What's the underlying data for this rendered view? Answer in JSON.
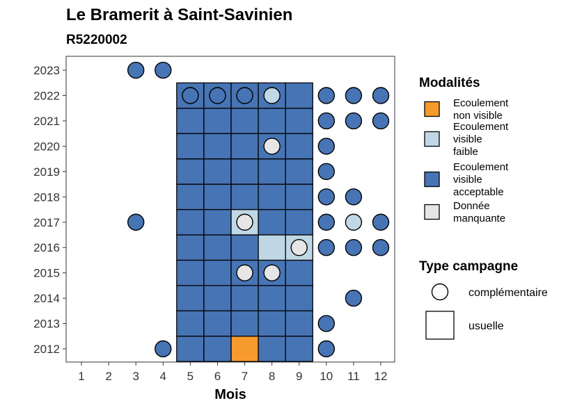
{
  "title": "Le Bramerit à Saint-Savinien",
  "subtitle": "R5220002",
  "chart_data": {
    "type": "heatmap",
    "xlabel": "Mois",
    "ylabel": "",
    "x_categories": [
      "1",
      "2",
      "3",
      "4",
      "5",
      "6",
      "7",
      "8",
      "9",
      "10",
      "11",
      "12"
    ],
    "y_categories": [
      "2012",
      "2013",
      "2014",
      "2015",
      "2016",
      "2017",
      "2018",
      "2019",
      "2020",
      "2021",
      "2022",
      "2023"
    ],
    "colors": {
      "ecoulement_non_visible": "#F79A2D",
      "ecoulement_visible_faible": "#C0D7E6",
      "ecoulement_visible_acceptable": "#4774B4",
      "donnee_manquante": "#E6E6E6"
    },
    "tiles_usuelle": [
      {
        "year": "2012",
        "months": [
          "5",
          "6",
          "7",
          "8",
          "9"
        ],
        "values": [
          "acceptable",
          "acceptable",
          "non_visible",
          "acceptable",
          "acceptable"
        ]
      },
      {
        "year": "2013",
        "months": [
          "5",
          "6",
          "7",
          "8",
          "9"
        ],
        "values": [
          "acceptable",
          "acceptable",
          "acceptable",
          "acceptable",
          "acceptable"
        ]
      },
      {
        "year": "2014",
        "months": [
          "5",
          "6",
          "7",
          "8",
          "9"
        ],
        "values": [
          "acceptable",
          "acceptable",
          "acceptable",
          "acceptable",
          "acceptable"
        ]
      },
      {
        "year": "2015",
        "months": [
          "5",
          "6",
          "7",
          "8",
          "9"
        ],
        "values": [
          "acceptable",
          "acceptable",
          "acceptable",
          "acceptable",
          "acceptable"
        ]
      },
      {
        "year": "2016",
        "months": [
          "5",
          "6",
          "7",
          "8",
          "9"
        ],
        "values": [
          "acceptable",
          "acceptable",
          "acceptable",
          "faible",
          "faible"
        ]
      },
      {
        "year": "2017",
        "months": [
          "5",
          "6",
          "7",
          "8",
          "9"
        ],
        "values": [
          "acceptable",
          "acceptable",
          "faible",
          "acceptable",
          "acceptable"
        ]
      },
      {
        "year": "2018",
        "months": [
          "5",
          "6",
          "7",
          "8",
          "9"
        ],
        "values": [
          "acceptable",
          "acceptable",
          "acceptable",
          "acceptable",
          "acceptable"
        ]
      },
      {
        "year": "2019",
        "months": [
          "5",
          "6",
          "7",
          "8",
          "9"
        ],
        "values": [
          "acceptable",
          "acceptable",
          "acceptable",
          "acceptable",
          "acceptable"
        ]
      },
      {
        "year": "2020",
        "months": [
          "5",
          "6",
          "7",
          "8",
          "9"
        ],
        "values": [
          "acceptable",
          "acceptable",
          "acceptable",
          "acceptable",
          "acceptable"
        ]
      },
      {
        "year": "2021",
        "months": [
          "5",
          "6",
          "7",
          "8",
          "9"
        ],
        "values": [
          "acceptable",
          "acceptable",
          "acceptable",
          "acceptable",
          "acceptable"
        ]
      },
      {
        "year": "2022",
        "months": [
          "5",
          "6",
          "7",
          "8",
          "9"
        ],
        "values": [
          "acceptable",
          "acceptable",
          "acceptable",
          "acceptable",
          "acceptable"
        ]
      }
    ],
    "points_complementaire": [
      {
        "year": "2023",
        "month": "3",
        "value": "acceptable"
      },
      {
        "year": "2023",
        "month": "4",
        "value": "acceptable"
      },
      {
        "year": "2022",
        "month": "5",
        "value": "acceptable"
      },
      {
        "year": "2022",
        "month": "6",
        "value": "acceptable"
      },
      {
        "year": "2022",
        "month": "7",
        "value": "acceptable"
      },
      {
        "year": "2022",
        "month": "8",
        "value": "faible"
      },
      {
        "year": "2022",
        "month": "10",
        "value": "acceptable"
      },
      {
        "year": "2022",
        "month": "11",
        "value": "acceptable"
      },
      {
        "year": "2022",
        "month": "12",
        "value": "acceptable"
      },
      {
        "year": "2021",
        "month": "10",
        "value": "acceptable"
      },
      {
        "year": "2021",
        "month": "11",
        "value": "acceptable"
      },
      {
        "year": "2021",
        "month": "12",
        "value": "acceptable"
      },
      {
        "year": "2020",
        "month": "8",
        "value": "manquante"
      },
      {
        "year": "2020",
        "month": "10",
        "value": "acceptable"
      },
      {
        "year": "2019",
        "month": "10",
        "value": "acceptable"
      },
      {
        "year": "2018",
        "month": "10",
        "value": "acceptable"
      },
      {
        "year": "2018",
        "month": "11",
        "value": "acceptable"
      },
      {
        "year": "2017",
        "month": "3",
        "value": "acceptable"
      },
      {
        "year": "2017",
        "month": "7",
        "value": "manquante"
      },
      {
        "year": "2017",
        "month": "10",
        "value": "acceptable"
      },
      {
        "year": "2017",
        "month": "11",
        "value": "faible"
      },
      {
        "year": "2017",
        "month": "12",
        "value": "acceptable"
      },
      {
        "year": "2016",
        "month": "9",
        "value": "manquante"
      },
      {
        "year": "2016",
        "month": "10",
        "value": "acceptable"
      },
      {
        "year": "2016",
        "month": "11",
        "value": "acceptable"
      },
      {
        "year": "2016",
        "month": "12",
        "value": "acceptable"
      },
      {
        "year": "2015",
        "month": "7",
        "value": "manquante"
      },
      {
        "year": "2015",
        "month": "8",
        "value": "manquante"
      },
      {
        "year": "2014",
        "month": "11",
        "value": "acceptable"
      },
      {
        "year": "2013",
        "month": "10",
        "value": "acceptable"
      },
      {
        "year": "2012",
        "month": "4",
        "value": "acceptable"
      },
      {
        "year": "2012",
        "month": "10",
        "value": "acceptable"
      }
    ],
    "grid": false,
    "legend_position": "right"
  },
  "legend": {
    "modalites_title": "Modalités",
    "modalites": [
      {
        "key": "non_visible",
        "color": "#F79A2D",
        "lines": [
          "Ecoulement",
          "non visible"
        ]
      },
      {
        "key": "faible",
        "color": "#C0D7E6",
        "lines": [
          "Ecoulement",
          "visible",
          "faible"
        ]
      },
      {
        "key": "acceptable",
        "color": "#4774B4",
        "lines": [
          "Ecoulement",
          "visible",
          "acceptable"
        ]
      },
      {
        "key": "manquante",
        "color": "#E6E6E6",
        "lines": [
          "Donnée",
          "manquante"
        ]
      }
    ],
    "campagne_title": "Type campagne",
    "campagne": [
      {
        "key": "complementaire",
        "label": "complémentaire",
        "shape": "circle"
      },
      {
        "key": "usuelle",
        "label": "usuelle",
        "shape": "square"
      }
    ]
  }
}
